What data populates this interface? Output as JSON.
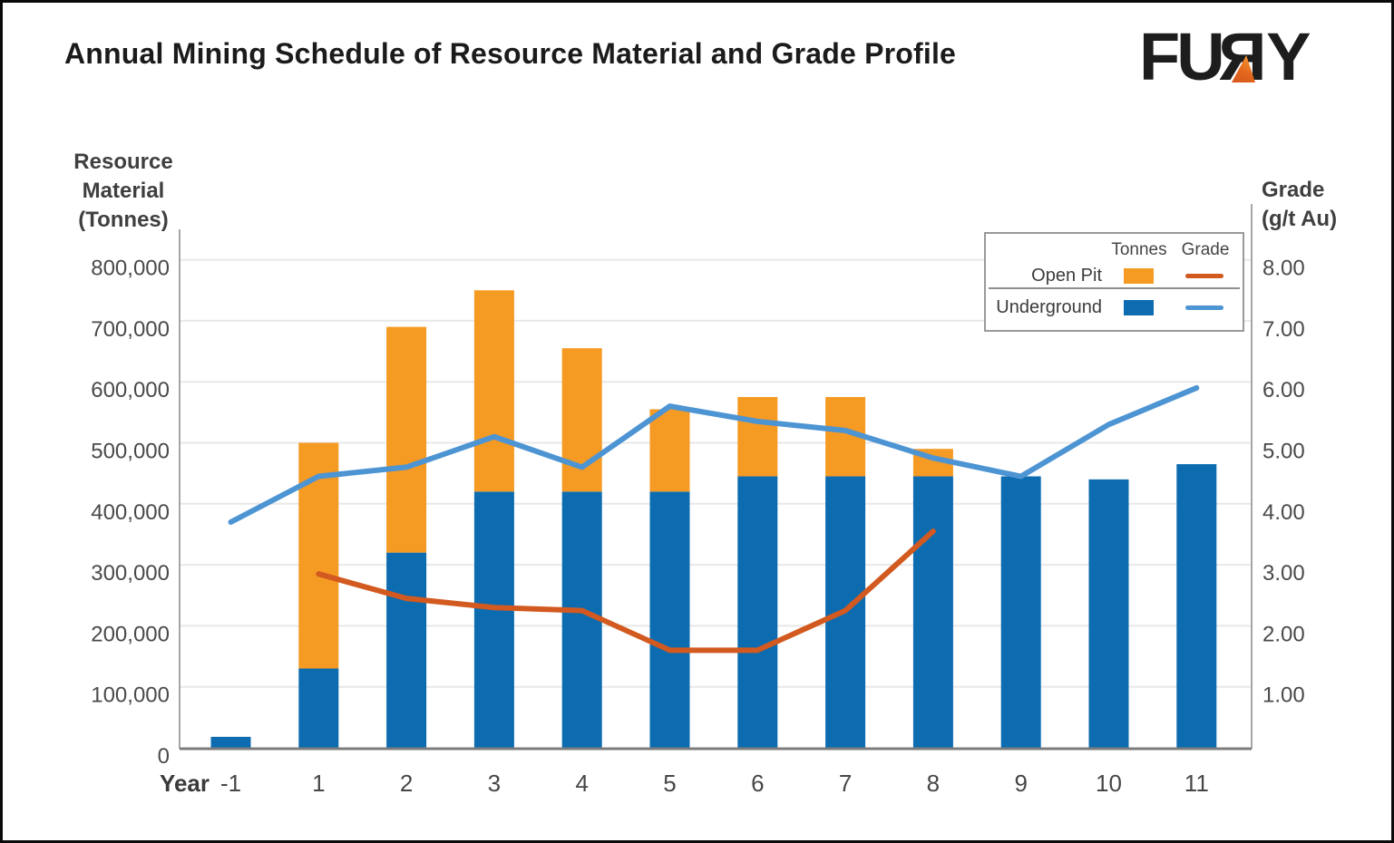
{
  "header": {
    "title": "Annual Mining Schedule of Resource Material and Grade Profile",
    "logo": {
      "fu": "FU",
      "r": "R",
      "y": "Y",
      "full_text": "FURY"
    }
  },
  "chart_data": {
    "type": "bar+line",
    "title": "Annual Mining Schedule of Resource Material and Grade Profile",
    "x_axis_label": "Year",
    "categories": [
      "-1",
      "1",
      "2",
      "3",
      "4",
      "5",
      "6",
      "7",
      "8",
      "9",
      "10",
      "11"
    ],
    "left_axis": {
      "title_lines": [
        "Resource",
        "Material",
        "(Tonnes)"
      ],
      "min": 0,
      "max": 800000,
      "step": 100000,
      "tick_labels": [
        "0",
        "100,000",
        "200,000",
        "300,000",
        "400,000",
        "500,000",
        "600,000",
        "700,000",
        "800,000"
      ]
    },
    "right_axis": {
      "title_lines": [
        "Grade",
        "(g/t Au)"
      ],
      "min": 0,
      "max": 8,
      "step": 1,
      "tick_labels": [
        "1.00",
        "2.00",
        "3.00",
        "4.00",
        "5.00",
        "6.00",
        "7.00",
        "8.00"
      ]
    },
    "grid": true,
    "legend_position": "top-right",
    "series": [
      {
        "name": "Open Pit",
        "unit": "Tonnes",
        "type": "bar",
        "stack": "top",
        "color": "#F59A23",
        "values": [
          0,
          370000,
          370000,
          330000,
          235000,
          135000,
          130000,
          130000,
          45000,
          0,
          0,
          0
        ]
      },
      {
        "name": "Underground",
        "unit": "Tonnes",
        "type": "bar",
        "stack": "bottom",
        "color": "#0D6CB0",
        "values": [
          18000,
          130000,
          320000,
          420000,
          420000,
          420000,
          445000,
          445000,
          445000,
          445000,
          440000,
          465000
        ]
      },
      {
        "name": "Open Pit",
        "unit": "Grade",
        "type": "line",
        "color": "#D2591F",
        "values": [
          null,
          2.85,
          2.45,
          2.3,
          2.25,
          1.6,
          1.6,
          2.25,
          3.55,
          null,
          null,
          null
        ]
      },
      {
        "name": "Underground",
        "unit": "Grade",
        "type": "line",
        "color": "#4D94D3",
        "values": [
          3.7,
          4.45,
          4.6,
          5.1,
          4.6,
          5.6,
          5.35,
          5.2,
          4.75,
          4.45,
          5.3,
          5.9
        ]
      }
    ],
    "legend": {
      "col_headers": [
        "Tonnes",
        "Grade"
      ],
      "rows": [
        {
          "label": "Open Pit"
        },
        {
          "label": "Underground"
        }
      ]
    }
  }
}
